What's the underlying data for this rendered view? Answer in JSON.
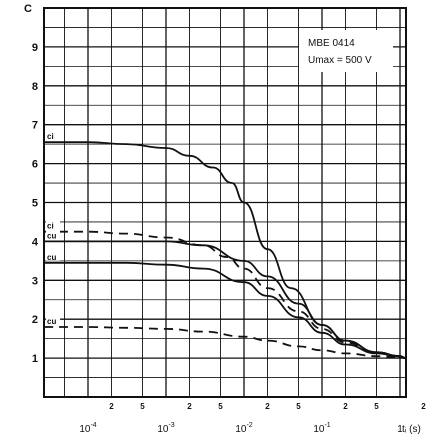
{
  "chart_data": {
    "type": "line",
    "title": "",
    "annotation": [
      "MBE 0414",
      "Umax = 500 V"
    ],
    "ylabel": "C",
    "xlabel": "tᵢ (s)",
    "x_scale": "log",
    "xlim": [
      2e-05,
      5
    ],
    "ylim": [
      0,
      10
    ],
    "grid": true,
    "y_ticks": [
      "1",
      "2",
      "3",
      "4",
      "5",
      "6",
      "7",
      "8",
      "9"
    ],
    "x_major_ticks": [
      {
        "value": 0.0001,
        "base": "10",
        "exp": "-4"
      },
      {
        "value": 0.001,
        "base": "10",
        "exp": "-3"
      },
      {
        "value": 0.01,
        "base": "10",
        "exp": "-2"
      },
      {
        "value": 0.1,
        "base": "10",
        "exp": "-1"
      },
      {
        "value": 1,
        "base": "1",
        "exp": ""
      }
    ],
    "x_minor_ticks": [
      {
        "value": 0.0002,
        "label": "2"
      },
      {
        "value": 0.0005,
        "label": "5"
      },
      {
        "value": 0.002,
        "label": "2"
      },
      {
        "value": 0.005,
        "label": "5"
      },
      {
        "value": 0.02,
        "label": "2"
      },
      {
        "value": 0.05,
        "label": "5"
      },
      {
        "value": 0.2,
        "label": "2"
      },
      {
        "value": 0.5,
        "label": "5"
      },
      {
        "value": 2,
        "label": "2"
      }
    ],
    "series": [
      {
        "name": "ci",
        "style": "solid",
        "x": [
          2e-05,
          0.0001,
          0.0003,
          0.001,
          0.002,
          0.004,
          0.007,
          0.01,
          0.02,
          0.04,
          0.1,
          0.2,
          0.5,
          1,
          2,
          5
        ],
        "y": [
          6.55,
          6.55,
          6.5,
          6.4,
          6.2,
          5.9,
          5.5,
          5.0,
          3.8,
          2.8,
          1.85,
          1.45,
          1.15,
          1.05,
          1.0,
          1.0
        ]
      },
      {
        "name": "ci",
        "style": "dashed",
        "x": [
          2e-05,
          0.0001,
          0.0003,
          0.001,
          0.003,
          0.006,
          0.01,
          0.02,
          0.05,
          0.1,
          0.2,
          0.5,
          1,
          2,
          5
        ],
        "y": [
          4.25,
          4.25,
          4.2,
          4.1,
          3.9,
          3.6,
          3.3,
          2.8,
          2.2,
          1.75,
          1.4,
          1.15,
          1.05,
          1.0,
          1.0
        ]
      },
      {
        "name": "cu",
        "style": "solid",
        "x": [
          2e-05,
          0.0001,
          0.0003,
          0.001,
          0.003,
          0.01,
          0.02,
          0.05,
          0.1,
          0.2,
          0.5,
          1,
          2,
          5
        ],
        "y": [
          4.0,
          4.0,
          4.0,
          4.0,
          3.9,
          3.5,
          3.1,
          2.4,
          1.85,
          1.45,
          1.15,
          1.05,
          1.0,
          1.0
        ]
      },
      {
        "name": "cu",
        "style": "solid",
        "x": [
          2e-05,
          0.0001,
          0.0003,
          0.001,
          0.003,
          0.01,
          0.02,
          0.05,
          0.1,
          0.2,
          0.5,
          1,
          2,
          5
        ],
        "y": [
          3.45,
          3.45,
          3.45,
          3.4,
          3.3,
          2.95,
          2.6,
          2.05,
          1.65,
          1.35,
          1.12,
          1.04,
          1.0,
          1.0
        ]
      },
      {
        "name": "cu",
        "style": "dashed",
        "x": [
          2e-05,
          0.0001,
          0.0003,
          0.001,
          0.003,
          0.01,
          0.02,
          0.05,
          0.1,
          0.2,
          0.5,
          1,
          2,
          5
        ],
        "y": [
          1.8,
          1.8,
          1.78,
          1.75,
          1.68,
          1.55,
          1.45,
          1.3,
          1.2,
          1.12,
          1.05,
          1.02,
          1.0,
          1.0
        ]
      }
    ]
  }
}
